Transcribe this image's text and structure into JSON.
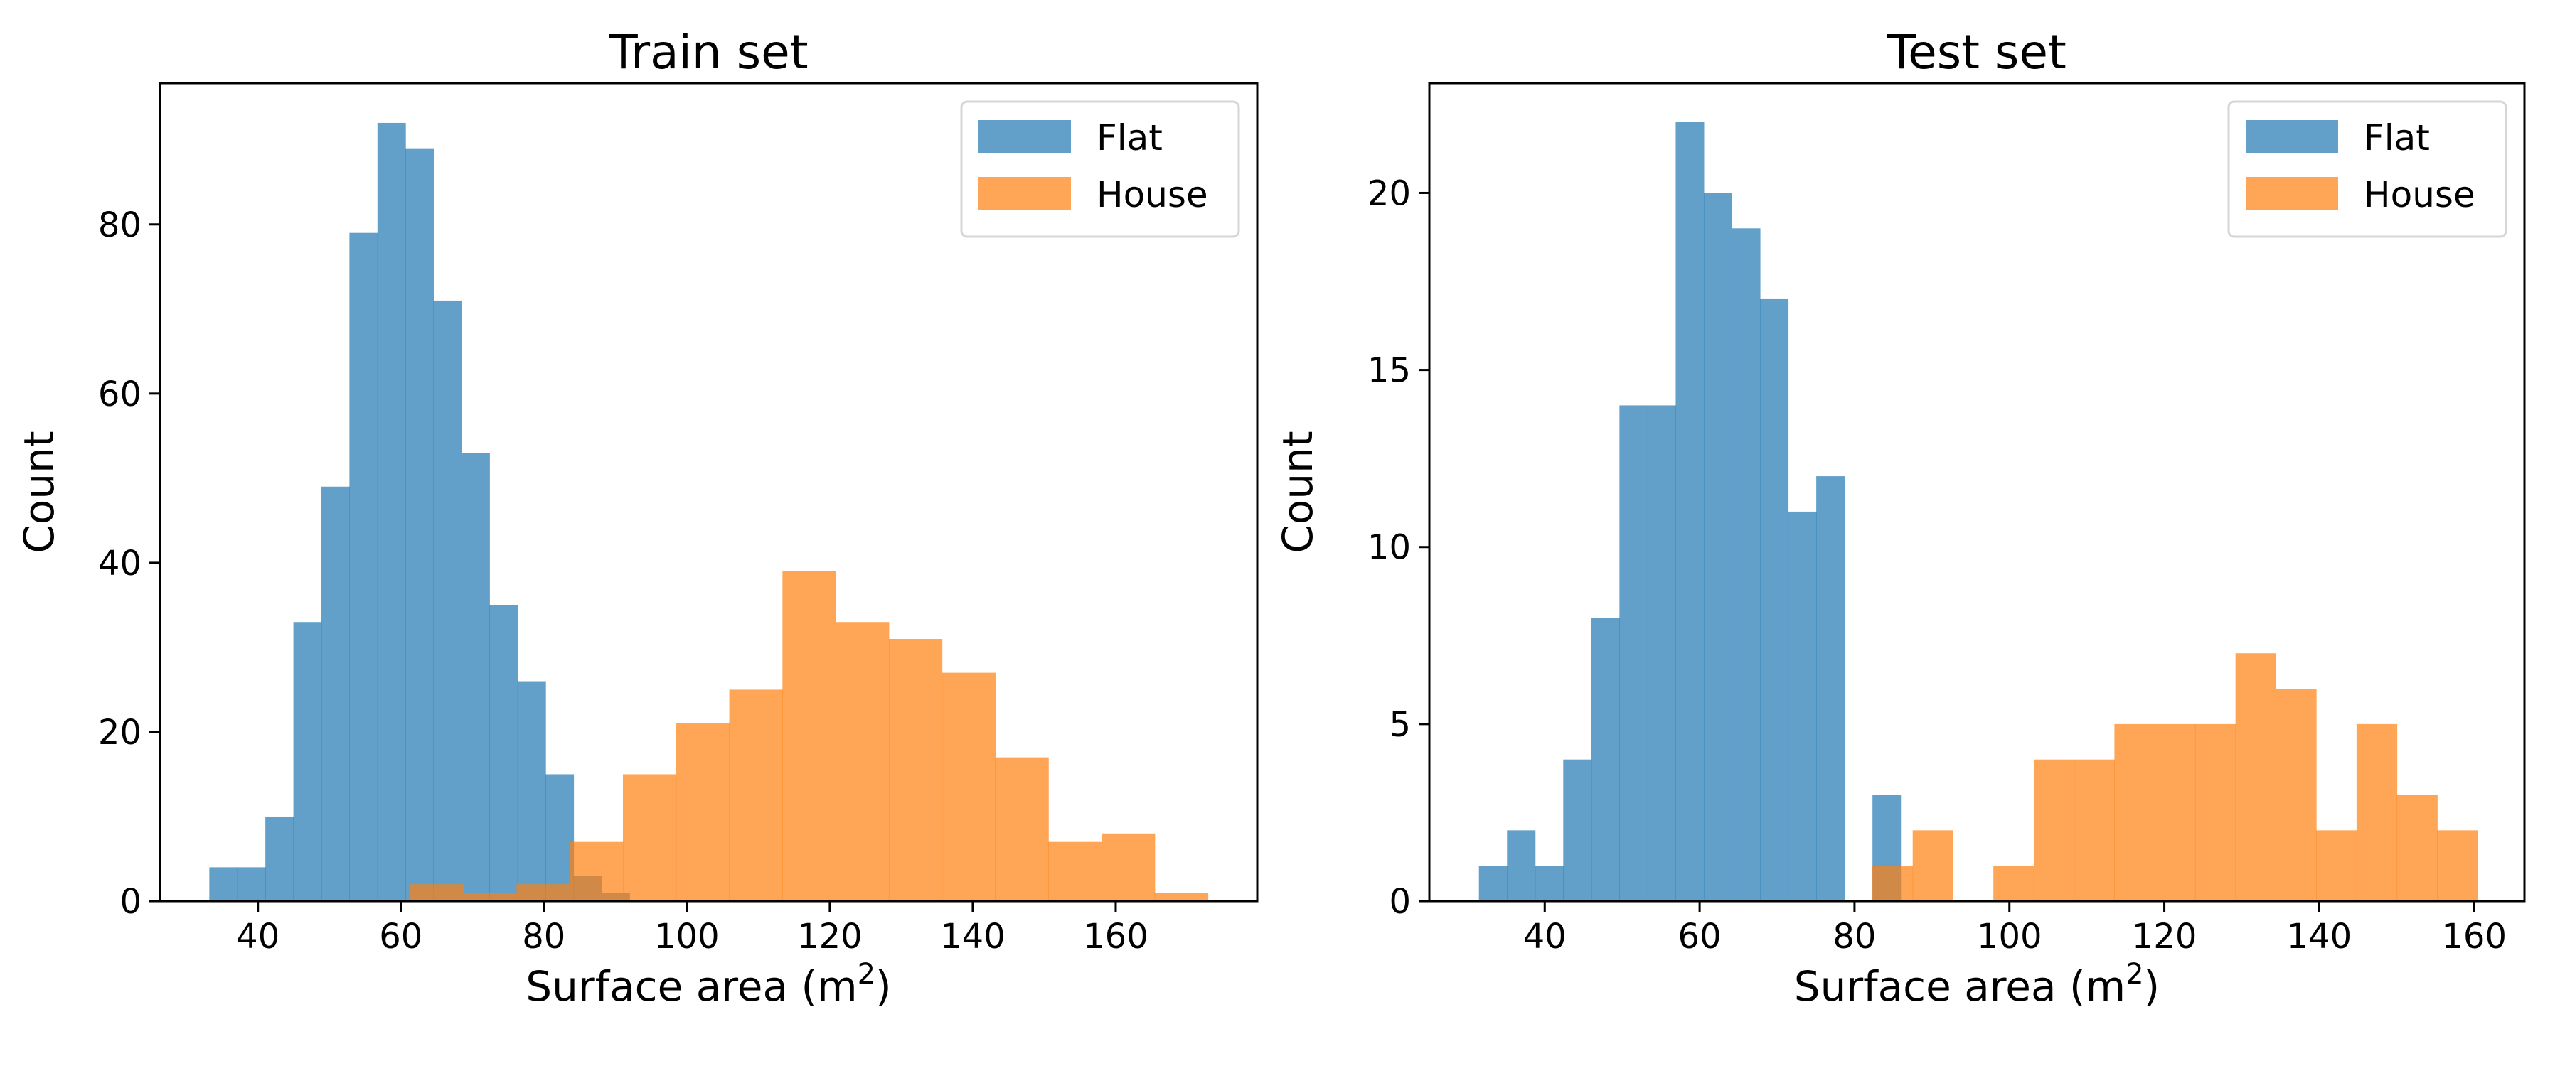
{
  "chart_data": [
    {
      "type": "bar",
      "subtype": "histogram",
      "title": "Train set",
      "xlabel": "Surface area (m²)",
      "ylabel": "Count",
      "xlim": [
        26.3,
        179.8
      ],
      "ylim": [
        0,
        96.7
      ],
      "xticks": [
        40,
        60,
        80,
        100,
        120,
        140,
        160
      ],
      "yticks": [
        0,
        20,
        40,
        60,
        80
      ],
      "grid": false,
      "legend_position": "top-right",
      "series": [
        {
          "name": "Flat",
          "color": "#1f77b4",
          "alpha": 0.7,
          "bin_start": 33.2,
          "bin_width": 3.92,
          "values": [
            4,
            4,
            10,
            33,
            49,
            79,
            92,
            89,
            71,
            53,
            35,
            26,
            15,
            3,
            1
          ]
        },
        {
          "name": "House",
          "color": "#ff7f0e",
          "alpha": 0.7,
          "bin_start": 61.3,
          "bin_width": 7.44,
          "values": [
            2,
            1,
            2,
            7,
            15,
            21,
            25,
            39,
            33,
            31,
            27,
            17,
            7,
            8,
            1
          ]
        }
      ]
    },
    {
      "type": "bar",
      "subtype": "histogram",
      "title": "Test set",
      "xlabel": "Surface area (m²)",
      "ylabel": "Count",
      "xlim": [
        25.1,
        166.5
      ],
      "ylim": [
        0,
        23.1
      ],
      "xticks": [
        40,
        60,
        80,
        100,
        120,
        140,
        160
      ],
      "yticks": [
        0,
        5,
        10,
        15,
        20
      ],
      "grid": false,
      "legend_position": "top-right",
      "series": [
        {
          "name": "Flat",
          "color": "#1f77b4",
          "alpha": 0.7,
          "bin_start": 31.5,
          "bin_width": 3.63,
          "values": [
            1,
            2,
            1,
            4,
            8,
            14,
            14,
            22,
            20,
            19,
            17,
            11,
            12,
            0,
            3
          ]
        },
        {
          "name": "House",
          "color": "#ff7f0e",
          "alpha": 0.7,
          "bin_start": 82.3,
          "bin_width": 5.21,
          "values": [
            1,
            2,
            0,
            1,
            4,
            4,
            5,
            5,
            5,
            7,
            6,
            2,
            5,
            3,
            2
          ]
        }
      ]
    }
  ]
}
